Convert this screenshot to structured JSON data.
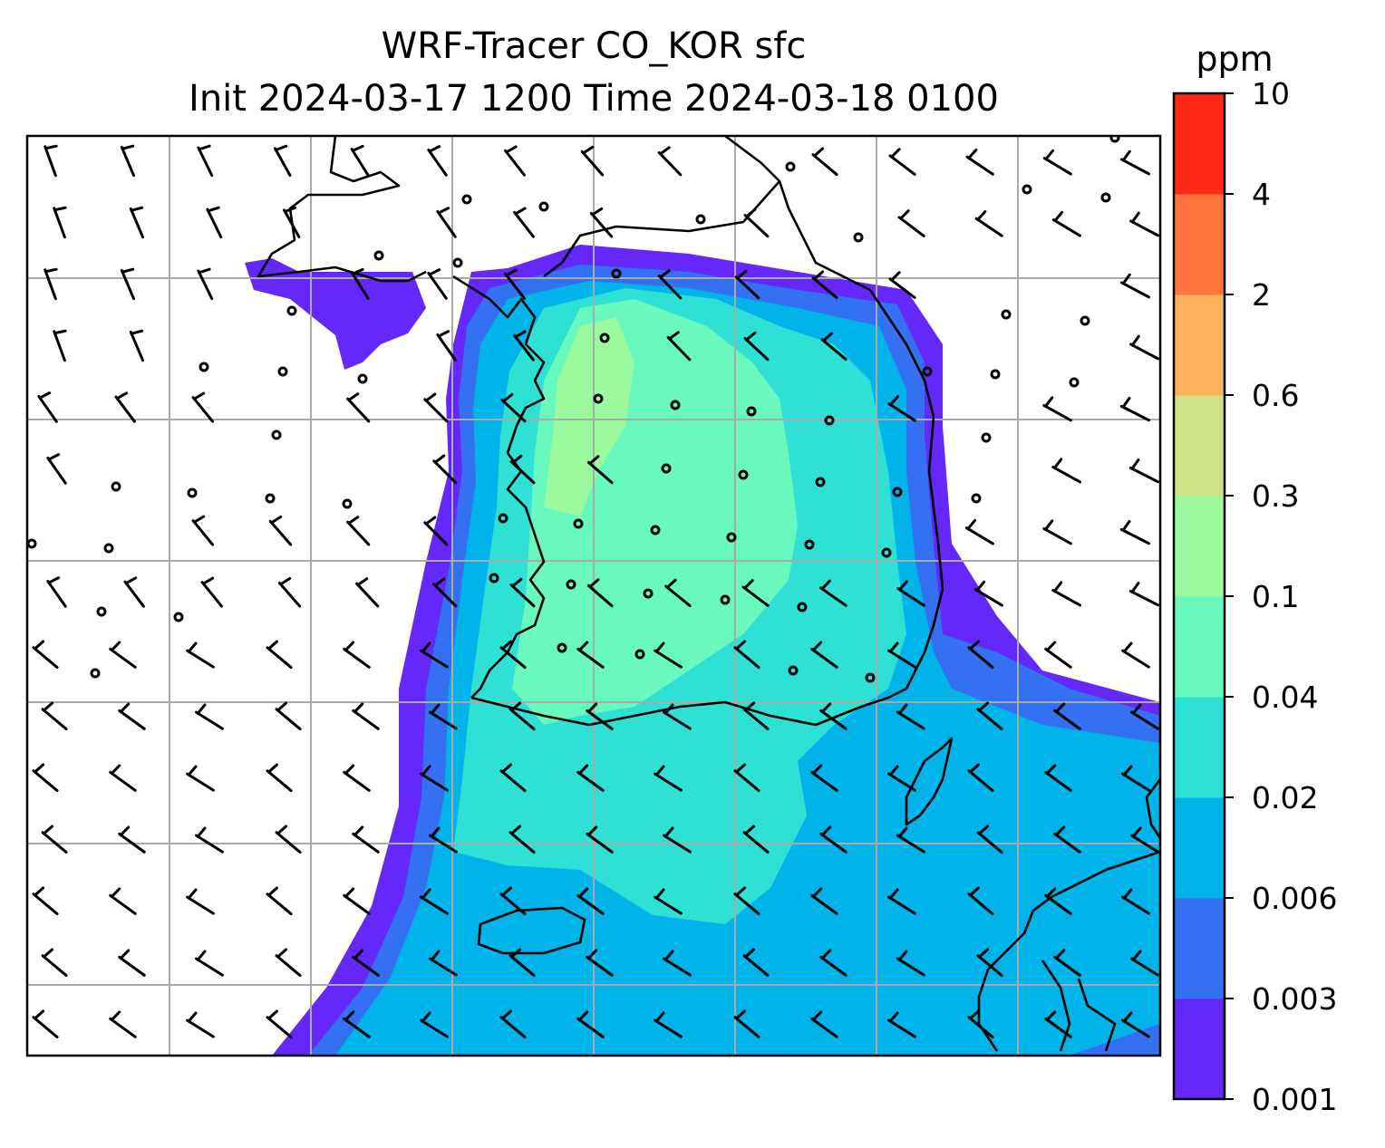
{
  "title": {
    "line1": "WRF-Tracer CO_KOR sfc",
    "line2": "Init 2024-03-17 1200 Time 2024-03-18 0100"
  },
  "colorbar": {
    "unit": "ppm",
    "levels": [
      "0.001",
      "0.003",
      "0.006",
      "0.02",
      "0.04",
      "0.1",
      "0.3",
      "0.6",
      "2",
      "4",
      "10"
    ],
    "colors": [
      "#6428fa",
      "#3470f2",
      "#00b4ea",
      "#2fe0d4",
      "#69f8be",
      "#9bfa9e",
      "#cfe285",
      "#ffb15e",
      "#ff733c",
      "#ff2814"
    ]
  },
  "map": {
    "background": "#ffffff",
    "gridline_color": "#aaaaaa",
    "coastline_color": "#000000",
    "wind_barb_color": "#000000",
    "layers": [
      "concentration-fill",
      "gridlines",
      "coastlines",
      "wind-barbs"
    ]
  }
}
